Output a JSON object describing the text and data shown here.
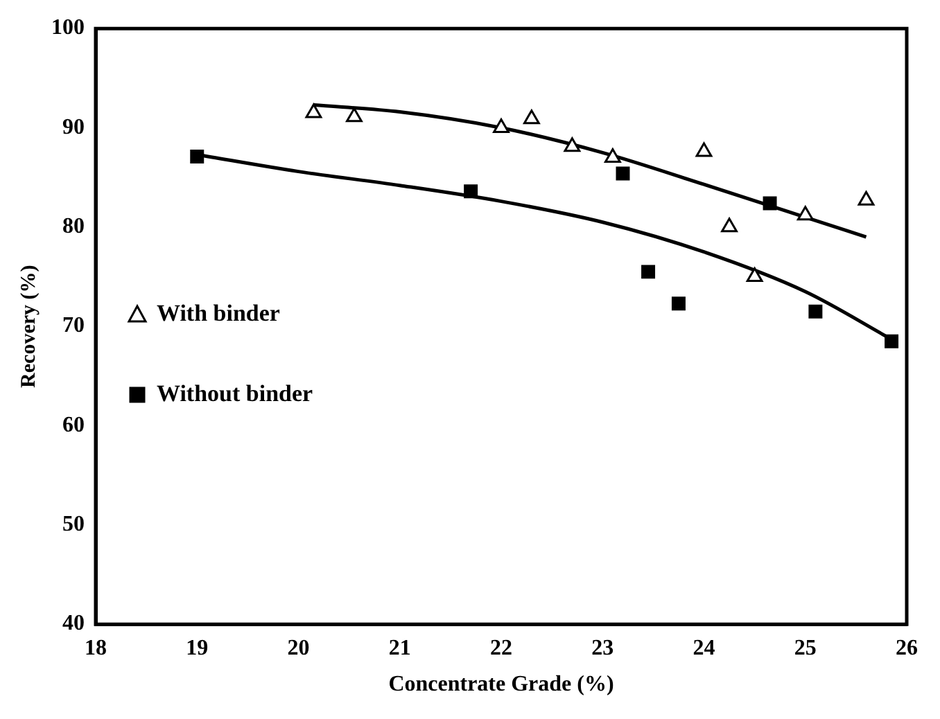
{
  "chart_data": {
    "type": "scatter",
    "xlabel": "Concentrate Grade (%)",
    "ylabel": "Recovery (%)",
    "xlim": [
      18,
      26
    ],
    "xticks": [
      18,
      19,
      20,
      21,
      22,
      23,
      24,
      25,
      26
    ],
    "ylim": [
      40,
      100
    ],
    "yticks": [
      40,
      50,
      60,
      70,
      80,
      90,
      100
    ],
    "grid": false,
    "legend": "left",
    "series": [
      {
        "name": "With binder",
        "color": "#000000",
        "marker": "triangle",
        "x": [
          20.15,
          20.55,
          22.0,
          22.3,
          22.7,
          23.1,
          24.0,
          24.25,
          24.5,
          25.0,
          25.6
        ],
        "values": [
          91.5,
          91.1,
          90.0,
          90.9,
          88.1,
          87.0,
          87.6,
          80.0,
          75.0,
          81.2,
          82.7
        ]
      },
      {
        "name": "Without binder",
        "color": "#000000",
        "marker": "square",
        "x": [
          19.0,
          21.7,
          23.2,
          23.45,
          23.75,
          24.65,
          25.1,
          25.85
        ],
        "values": [
          87.1,
          83.6,
          85.4,
          75.5,
          72.3,
          82.4,
          71.5,
          68.5
        ]
      },
      {
        "type": "line",
        "color": "#000000",
        "marker": "none",
        "x": [
          20.15,
          21,
          22,
          23,
          24,
          25,
          25.6
        ],
        "values": [
          92.3,
          91.6,
          90.0,
          87.5,
          84.3,
          81.0,
          79.0
        ]
      },
      {
        "type": "line",
        "color": "#000000",
        "marker": "none",
        "x": [
          19,
          20,
          21,
          22,
          23,
          24,
          25,
          25.85
        ],
        "values": [
          87.3,
          85.6,
          84.2,
          82.6,
          80.5,
          77.5,
          73.5,
          68.7
        ]
      }
    ]
  }
}
